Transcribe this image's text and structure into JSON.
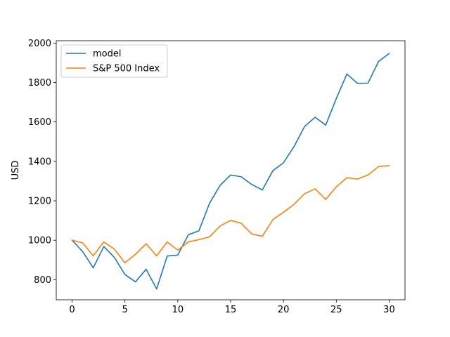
{
  "chart_data": {
    "type": "line",
    "title": "",
    "xlabel": "",
    "ylabel": "USD",
    "xlim": [
      -1.5,
      31.5
    ],
    "ylim": [
      698,
      2012
    ],
    "x_ticks": [
      0,
      5,
      10,
      15,
      20,
      25,
      30
    ],
    "y_ticks": [
      800,
      1000,
      1200,
      1400,
      1600,
      1800,
      2000
    ],
    "grid": false,
    "legend_position": "top-left",
    "x": [
      0,
      1,
      2,
      3,
      4,
      5,
      6,
      7,
      8,
      9,
      10,
      11,
      12,
      13,
      14,
      15,
      16,
      17,
      18,
      19,
      20,
      21,
      22,
      23,
      24,
      25,
      26,
      27,
      28,
      29,
      30
    ],
    "series": [
      {
        "name": "model",
        "color": "#1f77b4",
        "values": [
          1000,
          942,
          860,
          968,
          913,
          826,
          789,
          853,
          753,
          920,
          925,
          1028,
          1048,
          1187,
          1278,
          1331,
          1322,
          1283,
          1255,
          1353,
          1393,
          1475,
          1577,
          1624,
          1584,
          1719,
          1843,
          1796,
          1797,
          1907,
          1947
        ]
      },
      {
        "name": "S&P 500 Index",
        "color": "#ff7f0e",
        "values": [
          1000,
          987,
          921,
          991,
          955,
          886,
          929,
          982,
          921,
          991,
          950,
          992,
          1003,
          1017,
          1072,
          1101,
          1086,
          1032,
          1020,
          1105,
          1142,
          1182,
          1236,
          1261,
          1207,
          1271,
          1317,
          1310,
          1331,
          1374,
          1378
        ]
      }
    ]
  }
}
